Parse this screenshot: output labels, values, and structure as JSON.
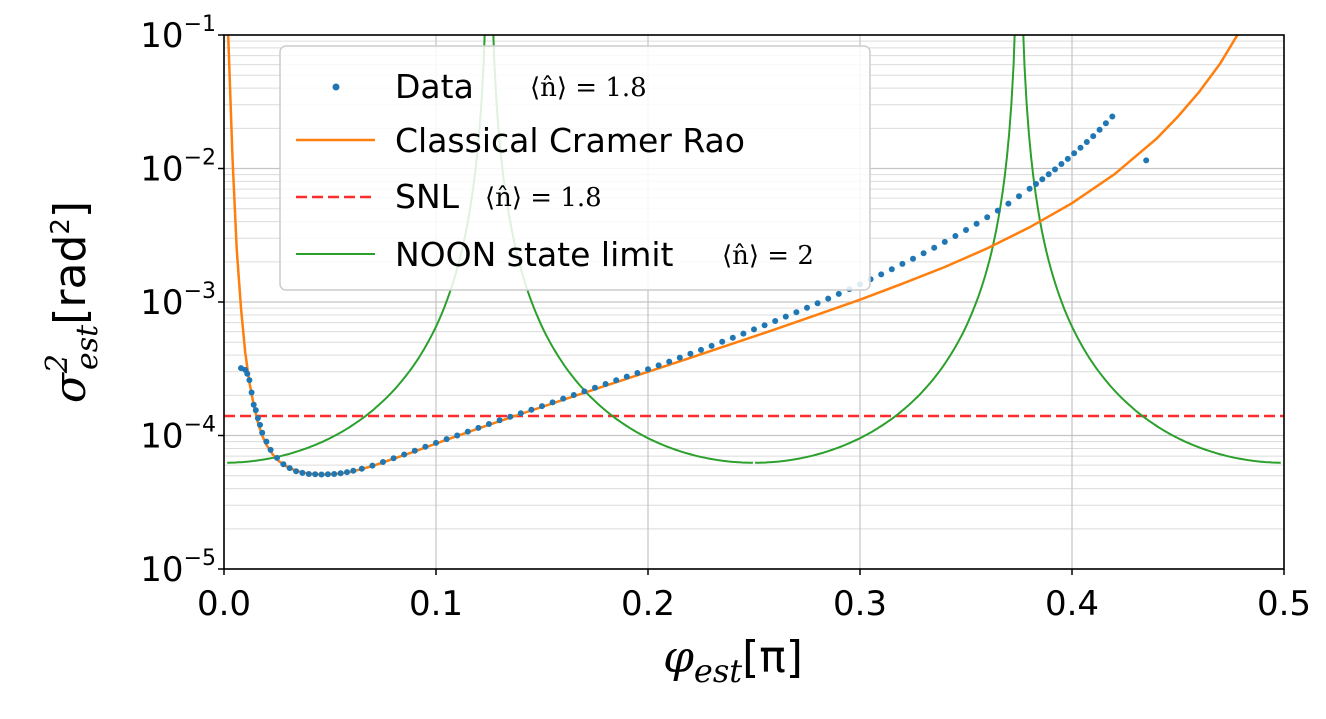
{
  "chart_data": {
    "type": "line",
    "xlabel": {
      "var": "φ",
      "sub": "est",
      "unit": "[π]"
    },
    "ylabel": {
      "var": "σ",
      "sup": "2",
      "sub": "est",
      "unit_pre": "[rad",
      "unit_sup": "2",
      "unit_post": "]"
    },
    "x_ticks": [
      "0.0",
      "0.1",
      "0.2",
      "0.3",
      "0.4",
      "0.5"
    ],
    "y_ticks": [
      {
        "base": "10",
        "exp": "−5"
      },
      {
        "base": "10",
        "exp": "−4"
      },
      {
        "base": "10",
        "exp": "−3"
      },
      {
        "base": "10",
        "exp": "−2"
      },
      {
        "base": "10",
        "exp": "−1"
      }
    ],
    "xlim": [
      0,
      0.5
    ],
    "ylim": [
      1e-05,
      0.1
    ],
    "yscale": "log",
    "grid": "major and minor",
    "legend_position": "top-left",
    "legend": [
      {
        "label": "Data",
        "math": "⟨n̂⟩ = 1.8"
      },
      {
        "label": "Classical Cramer Rao",
        "math": ""
      },
      {
        "label": "SNL",
        "math": "⟨n̂⟩ = 1.8"
      },
      {
        "label": "NOON state limit",
        "math": "⟨n̂⟩ = 2"
      }
    ],
    "colors": {
      "data": "#1f77b4",
      "classical": "#ff7f0e",
      "snl": "#ff2a2a",
      "noon": "#2ca02c"
    },
    "series": [
      {
        "name": "Data",
        "kind": "scatter",
        "x": [
          0.008,
          0.01,
          0.011,
          0.012,
          0.013,
          0.014,
          0.015,
          0.016,
          0.017,
          0.018,
          0.02,
          0.022,
          0.025,
          0.028,
          0.031,
          0.034,
          0.037,
          0.04,
          0.043,
          0.046,
          0.049,
          0.052,
          0.055,
          0.058,
          0.061,
          0.065,
          0.07,
          0.075,
          0.08,
          0.085,
          0.09,
          0.095,
          0.1,
          0.105,
          0.11,
          0.115,
          0.12,
          0.125,
          0.13,
          0.135,
          0.14,
          0.145,
          0.15,
          0.155,
          0.16,
          0.165,
          0.17,
          0.175,
          0.18,
          0.185,
          0.19,
          0.195,
          0.2,
          0.205,
          0.21,
          0.215,
          0.22,
          0.225,
          0.23,
          0.235,
          0.24,
          0.245,
          0.25,
          0.255,
          0.26,
          0.265,
          0.27,
          0.275,
          0.28,
          0.285,
          0.29,
          0.295,
          0.3,
          0.305,
          0.31,
          0.315,
          0.32,
          0.325,
          0.33,
          0.335,
          0.34,
          0.345,
          0.35,
          0.355,
          0.36,
          0.365,
          0.37,
          0.375,
          0.38,
          0.383,
          0.386,
          0.389,
          0.392,
          0.395,
          0.398,
          0.401,
          0.404,
          0.407,
          0.41,
          0.413,
          0.416,
          0.419,
          0.435
        ],
        "y": [
          0.00032,
          0.00031,
          0.00029,
          0.00026,
          0.00021,
          0.00017,
          0.000155,
          0.000135,
          0.00012,
          0.000105,
          9e-05,
          7.8e-05,
          6.8e-05,
          6.1e-05,
          5.7e-05,
          5.4e-05,
          5.25e-05,
          5.15e-05,
          5.12e-05,
          5.1e-05,
          5.12e-05,
          5.15e-05,
          5.22e-05,
          5.32e-05,
          5.44e-05,
          5.63e-05,
          5.95e-05,
          6.33e-05,
          6.75e-05,
          7.2e-05,
          7.7e-05,
          8.25e-05,
          8.8e-05,
          9.4e-05,
          0.0001,
          0.000107,
          0.000114,
          0.000122,
          0.00013,
          0.000138,
          0.000147,
          0.000156,
          0.000166,
          0.000177,
          0.000189,
          0.000201,
          0.000214,
          0.000228,
          0.000243,
          0.000259,
          0.000276,
          0.000294,
          0.000314,
          0.000335,
          0.000358,
          0.000383,
          0.00041,
          0.000438,
          0.000469,
          0.000503,
          0.00054,
          0.00058,
          0.000623,
          0.00067,
          0.000721,
          0.000778,
          0.000839,
          0.000906,
          0.00098,
          0.00106,
          0.00115,
          0.00125,
          0.00136,
          0.00148,
          0.00161,
          0.00176,
          0.00193,
          0.00211,
          0.00232,
          0.00255,
          0.00282,
          0.00312,
          0.00346,
          0.00385,
          0.00431,
          0.00484,
          0.00546,
          0.00619,
          0.00706,
          0.00765,
          0.0083,
          0.00905,
          0.00985,
          0.0108,
          0.0118,
          0.013,
          0.0143,
          0.0158,
          0.0175,
          0.0195,
          0.0218,
          0.0245,
          0.0115
        ]
      },
      {
        "name": "Classical Cramer Rao",
        "kind": "line",
        "x": [
          0.002,
          0.004,
          0.006,
          0.008,
          0.01,
          0.012,
          0.014,
          0.016,
          0.018,
          0.02,
          0.023,
          0.026,
          0.03,
          0.034,
          0.038,
          0.042,
          0.046,
          0.05,
          0.055,
          0.06,
          0.07,
          0.08,
          0.09,
          0.1,
          0.12,
          0.14,
          0.16,
          0.18,
          0.2,
          0.22,
          0.24,
          0.26,
          0.28,
          0.3,
          0.32,
          0.34,
          0.36,
          0.38,
          0.4,
          0.42,
          0.44,
          0.45,
          0.46,
          0.47,
          0.478
        ],
        "y": [
          0.1,
          0.012,
          0.0025,
          0.0009,
          0.00042,
          0.00025,
          0.00017,
          0.000125,
          0.0001,
          8.5e-05,
          7.2e-05,
          6.4e-05,
          5.8e-05,
          5.45e-05,
          5.25e-05,
          5.15e-05,
          5.1e-05,
          5.12e-05,
          5.2e-05,
          5.35e-05,
          5.9e-05,
          6.7e-05,
          7.6e-05,
          8.7e-05,
          0.000113,
          0.000145,
          0.000185,
          0.000236,
          0.0003,
          0.000382,
          0.000488,
          0.000625,
          0.000805,
          0.00104,
          0.00137,
          0.00183,
          0.00252,
          0.00363,
          0.0055,
          0.00905,
          0.0168,
          0.0245,
          0.0375,
          0.0615,
          0.1
        ]
      },
      {
        "name": "SNL",
        "kind": "hline",
        "y": 0.00014
      },
      {
        "name": "NOON state limit",
        "kind": "line",
        "formula": "0.0000625/cos^2(4*pi*x)"
      }
    ]
  }
}
